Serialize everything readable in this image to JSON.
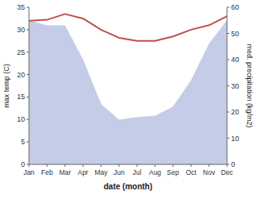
{
  "chart_data": {
    "type": "line",
    "categories": [
      "Jan",
      "Feb",
      "Mar",
      "Apr",
      "May",
      "Jun",
      "Jul",
      "Aug",
      "Sep",
      "Oct",
      "Nov",
      "Dec"
    ],
    "series": [
      {
        "type": "area",
        "axis": "y2",
        "color": "#c5cce8",
        "values": [
          55.0,
          53.0,
          53.0,
          40.0,
          23.0,
          17.0,
          18.0,
          18.5,
          22.0,
          32.0,
          46.0,
          55.0
        ]
      },
      {
        "type": "line",
        "color": "#c0504d",
        "values": [
          32.0,
          32.2,
          33.5,
          32.5,
          30.0,
          28.2,
          27.5,
          27.5,
          28.5,
          30.0,
          31.0,
          33.0
        ]
      }
    ],
    "xlabel": "date (month)",
    "ylabel": "max temp (C)",
    "y2label": "med. precipitation (kg/m2)",
    "ylim": [
      0,
      35
    ],
    "yticks": [
      0,
      5,
      10,
      15,
      20,
      25,
      30,
      35
    ],
    "y2lim": [
      0,
      60
    ],
    "y2ticks": [
      0,
      10,
      20,
      30,
      40,
      50,
      60
    ],
    "grid": false
  }
}
